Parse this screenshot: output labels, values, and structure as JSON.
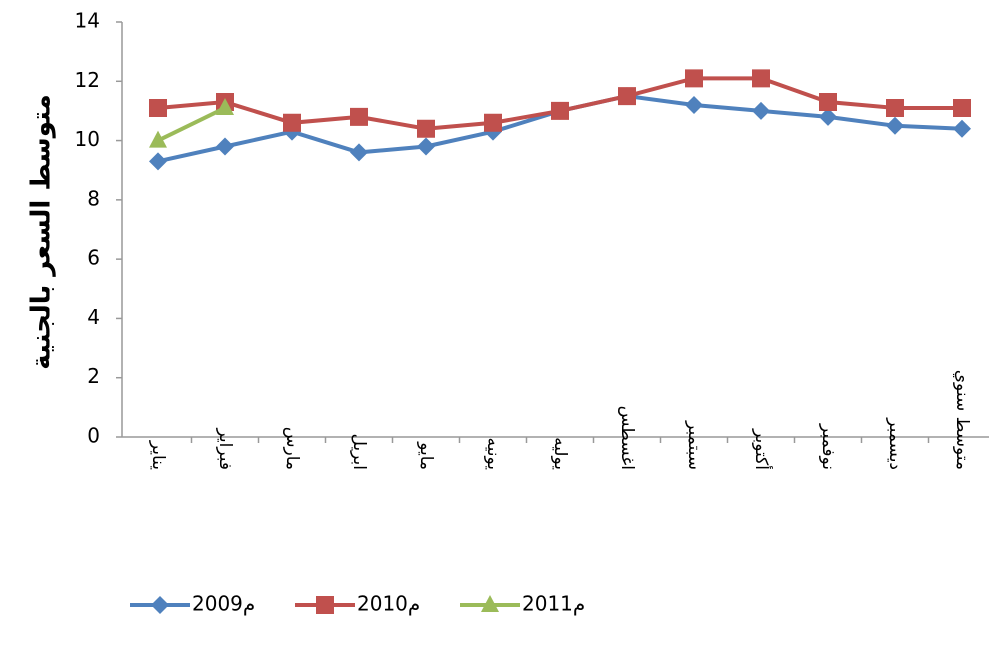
{
  "chart_data": {
    "type": "line",
    "y_label": "متوسط السعر بالجنية",
    "categories": [
      "يناير",
      "فبراير",
      "مارس",
      "ابريل",
      "مايو",
      "يونيه",
      "يوليه",
      "اغسطس",
      "سبتمبر",
      "أكتوبر",
      "نوفمبر",
      "ديسمبر",
      "متوسط سنوي"
    ],
    "series": [
      {
        "name": "2009م",
        "color": "#4f81bd",
        "marker": "diamond",
        "values": [
          9.3,
          9.8,
          10.3,
          9.6,
          9.8,
          10.3,
          11.0,
          11.5,
          11.2,
          11.0,
          10.8,
          10.5,
          10.4
        ]
      },
      {
        "name": "2010م",
        "color": "#c0504d",
        "marker": "square",
        "values": [
          11.1,
          11.3,
          10.6,
          10.8,
          10.4,
          10.6,
          11.0,
          11.5,
          12.1,
          12.1,
          11.3,
          11.1,
          11.1
        ]
      },
      {
        "name": "2011م",
        "color": "#9bbb59",
        "marker": "triangle",
        "values": [
          10.0,
          11.1,
          null,
          null,
          null,
          null,
          null,
          null,
          null,
          null,
          null,
          null,
          null
        ]
      }
    ],
    "ylim": [
      0,
      14
    ],
    "yticks": [
      0,
      2,
      4,
      6,
      8,
      10,
      12,
      14
    ],
    "grid": false,
    "legend": "bottom-left"
  }
}
